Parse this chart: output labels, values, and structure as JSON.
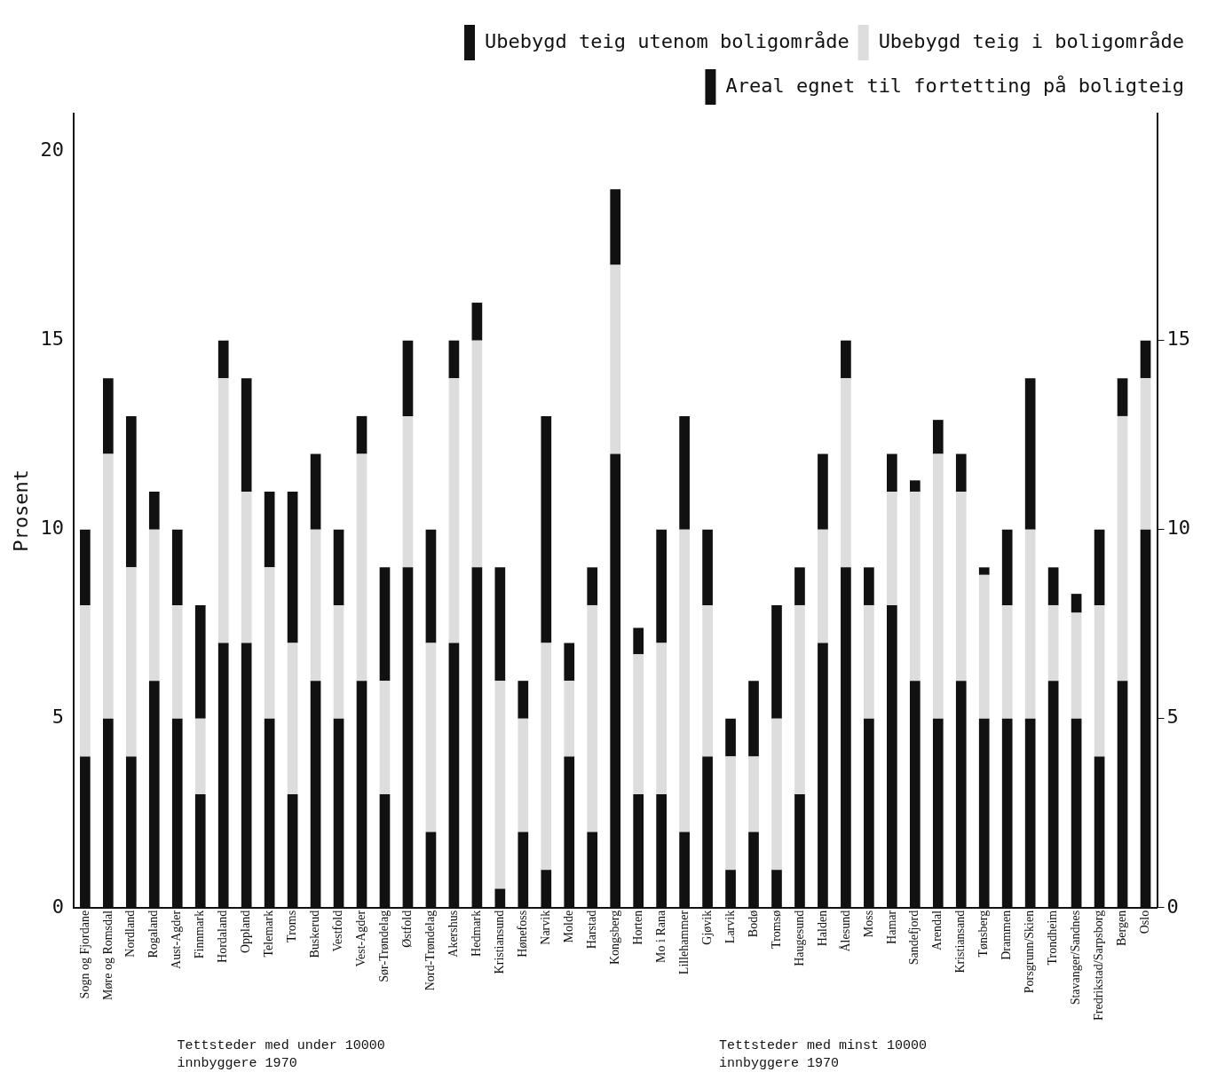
{
  "chart_data": {
    "type": "bar",
    "stacked": true,
    "ylabel": "Prosent",
    "categories": [
      "Sogn og Fjordane",
      "Møre og Romsdal",
      "Nordland",
      "Rogaland",
      "Aust-Agder",
      "Finnmark",
      "Hordaland",
      "Oppland",
      "Telemark",
      "Troms",
      "Buskerud",
      "Vestfold",
      "Vest-Agder",
      "Sør-Trøndelag",
      "Østfold",
      "Nord-Trøndelag",
      "Akershus",
      "Hedmark",
      "Kristiansund",
      "Hønefoss",
      "Narvik",
      "Molde",
      "Harstad",
      "Kongsberg",
      "Horten",
      "Mo i Rana",
      "Lillehammer",
      "Gjøvik",
      "Larvik",
      "Bodø",
      "Tromsø",
      "Haugesund",
      "Halden",
      "Ålesund",
      "Moss",
      "Hamar",
      "Sandefjord",
      "Arendal",
      "Kristiansand",
      "Tønsberg",
      "Drammen",
      "Porsgrunn/Skien",
      "Trondheim",
      "Stavanger/Sandnes",
      "Fredrikstad/Sarpsborg",
      "Bergen",
      "Oslo"
    ],
    "series": [
      {
        "name": "Areal egnet til fortetting på boligteig",
        "color": "#111111",
        "values": [
          4,
          5,
          4,
          6,
          5,
          3,
          7,
          7,
          5,
          3,
          6,
          5,
          6,
          3,
          9,
          2,
          7,
          9,
          0.5,
          2,
          1,
          4,
          2,
          12,
          3,
          3,
          2,
          4,
          1,
          2,
          1,
          3,
          7,
          9,
          5,
          8,
          6,
          5,
          6,
          5,
          5,
          5,
          6,
          5,
          4,
          6,
          10
        ]
      },
      {
        "name": "Ubebygd teig i boligområde",
        "color": "#dddddd",
        "values": [
          4,
          7,
          5,
          4,
          3,
          2,
          7,
          4,
          4,
          4,
          4,
          3,
          6,
          3,
          4,
          5,
          7,
          6,
          5.5,
          3,
          6,
          2,
          6,
          5,
          3.7,
          4,
          8,
          4,
          3,
          2,
          4,
          5,
          3,
          5,
          3,
          3,
          5,
          7,
          5,
          3.8,
          3,
          5,
          2,
          2.8,
          4,
          7,
          4
        ]
      },
      {
        "name": "Ubebygd teig utenom boligområde",
        "color": "#111111",
        "values": [
          2,
          2,
          4,
          1,
          2,
          3,
          1,
          3,
          2,
          4,
          2,
          2,
          1,
          3,
          2,
          3,
          1,
          1,
          3,
          1,
          6,
          1,
          1,
          2,
          0.7,
          3,
          3,
          2,
          1,
          2,
          3,
          1,
          2,
          1,
          1,
          1,
          0.3,
          0.9,
          1,
          0.2,
          2,
          4,
          1,
          0.5,
          2,
          1,
          1
        ]
      }
    ],
    "ylim": [
      0,
      21
    ],
    "yticks": [
      0,
      5,
      10,
      15,
      20
    ],
    "y2lim": [
      0,
      21
    ],
    "y2ticks": [
      0,
      5,
      10,
      15
    ],
    "grid": false,
    "legend": "top right",
    "annotations": [
      "Tettsteder med under 10000 innbyggere 1970",
      "Tettsteder med minst 10000 innbyggere 1970"
    ]
  }
}
